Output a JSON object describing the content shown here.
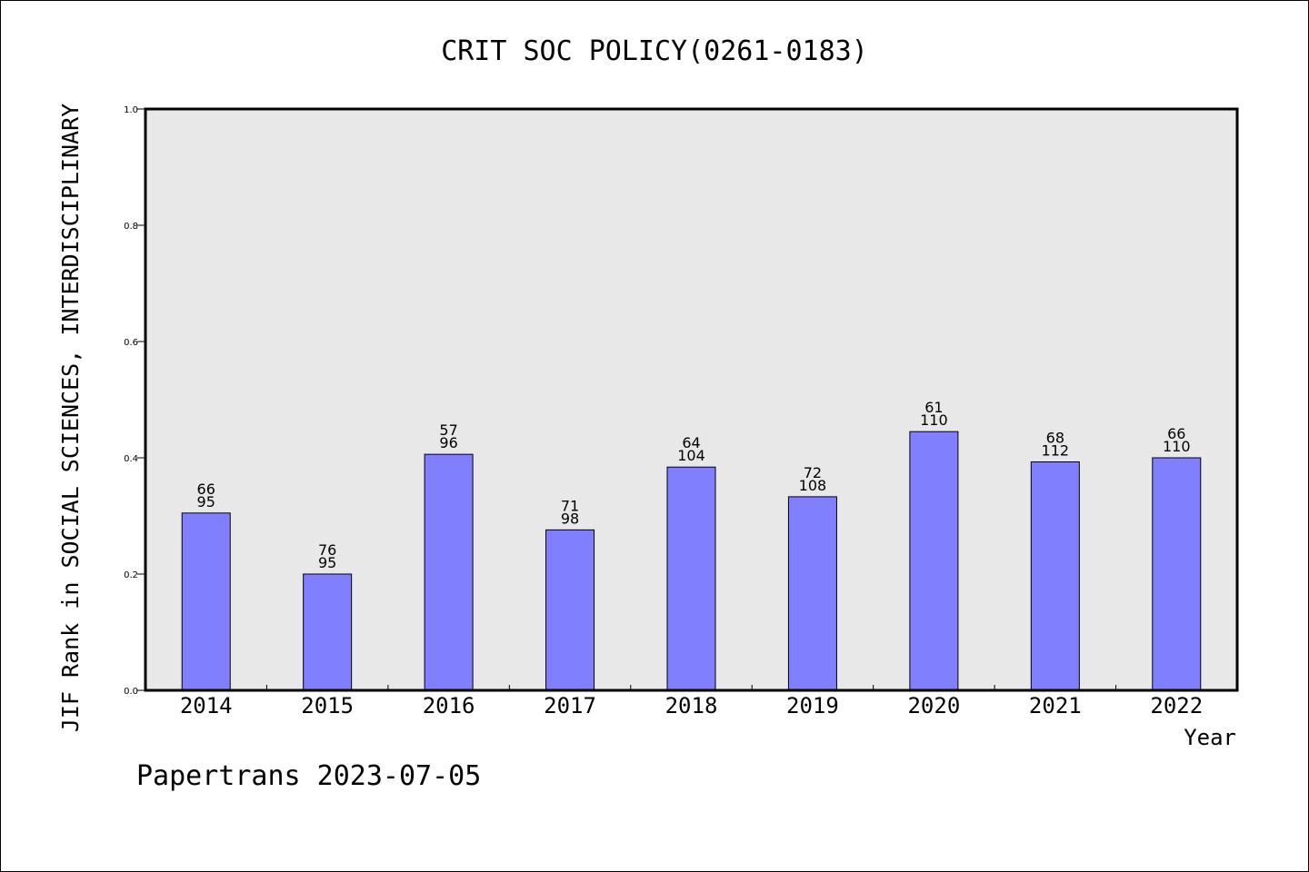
{
  "chart_data": {
    "type": "bar",
    "title": "CRIT SOC POLICY(0261-0183)",
    "xlabel": "Year",
    "ylabel": "JIF Rank in SOCIAL SCIENCES, INTERDISCIPLINARY",
    "ylim": [
      0,
      1.0
    ],
    "yticks": [
      "0.0",
      "0.2",
      "0.4",
      "0.6",
      "0.8",
      "1.0"
    ],
    "grid": false,
    "categories": [
      "2014",
      "2015",
      "2016",
      "2017",
      "2018",
      "2019",
      "2020",
      "2021",
      "2022"
    ],
    "values": [
      0.305,
      0.2,
      0.406,
      0.276,
      0.384,
      0.333,
      0.445,
      0.393,
      0.4
    ],
    "labels_top": [
      "66",
      "76",
      "57",
      "71",
      "64",
      "72",
      "61",
      "68",
      "66"
    ],
    "labels_bottom": [
      "95",
      "95",
      "96",
      "98",
      "104",
      "108",
      "110",
      "112",
      "110"
    ],
    "colors": {
      "bar": "#8080ff",
      "plot_bg": "#e8e8e8"
    }
  },
  "footer": "Papertrans 2023-07-05"
}
